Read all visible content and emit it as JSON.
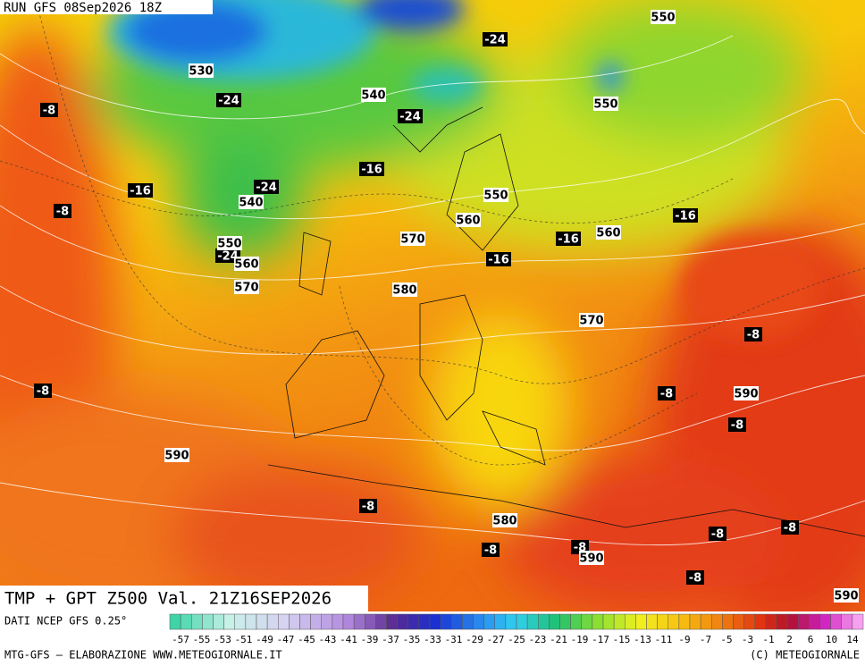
{
  "header": {
    "run": "RUN GFS 08Sep2026 18Z"
  },
  "map": {
    "temperature_labels": [
      -8,
      -24,
      -24,
      -24,
      -16,
      -8,
      -24,
      -16,
      -24,
      -16,
      -16,
      -16,
      -8,
      -8,
      -8,
      -8,
      -8,
      -8,
      -8,
      -8,
      -8,
      -8
    ],
    "height_labels": [
      550,
      530,
      540,
      550,
      540,
      550,
      560,
      560,
      570,
      550,
      560,
      570,
      580,
      570,
      590,
      590,
      580,
      590,
      590
    ]
  },
  "footer": {
    "title": "TMP + GPT Z500 Val. 21Z16SEP2026",
    "source": "DATI NCEP GFS 0.25°",
    "credit_left": "MTG-GFS – ELABORAZIONE WWW.METEOGIORNALE.IT",
    "credit_right": "(C) METEOGIORNALE"
  },
  "legend": {
    "labels": [
      -57,
      -55,
      -53,
      -51,
      -49,
      -47,
      -45,
      -43,
      -41,
      -39,
      -37,
      -35,
      -33,
      -31,
      -29,
      -27,
      -25,
      -23,
      -21,
      -19,
      -17,
      -15,
      -13,
      -11,
      -9,
      -7,
      -5,
      -3,
      -1,
      2,
      6,
      10,
      14
    ]
  }
}
